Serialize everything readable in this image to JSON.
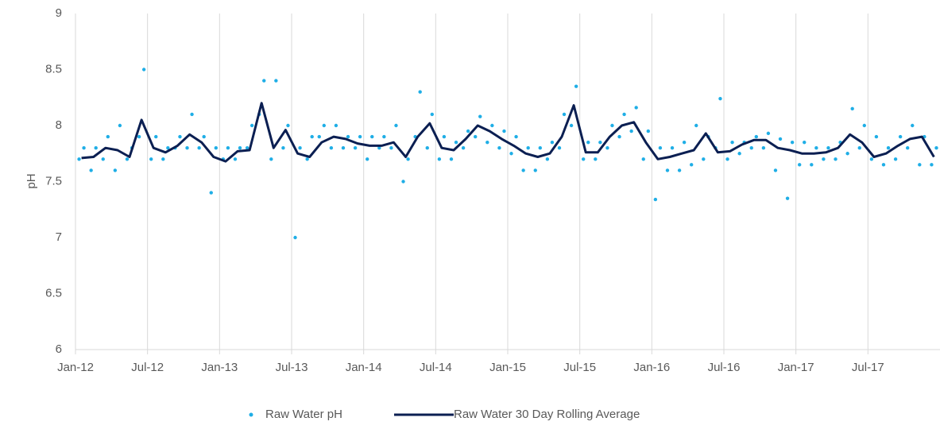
{
  "chart_data": {
    "type": "scatter_line",
    "y_label": "pH",
    "xlim": [
      "2012-01",
      "2018-01"
    ],
    "xticks": [
      {
        "value": "2012-01",
        "label": "Jan-12"
      },
      {
        "value": "2012-07",
        "label": "Jul-12"
      },
      {
        "value": "2013-01",
        "label": "Jan-13"
      },
      {
        "value": "2013-07",
        "label": "Jul-13"
      },
      {
        "value": "2014-01",
        "label": "Jan-14"
      },
      {
        "value": "2014-07",
        "label": "Jul-14"
      },
      {
        "value": "2015-01",
        "label": "Jan-15"
      },
      {
        "value": "2015-07",
        "label": "Jul-15"
      },
      {
        "value": "2016-01",
        "label": "Jan-16"
      },
      {
        "value": "2016-07",
        "label": "Jul-16"
      },
      {
        "value": "2017-01",
        "label": "Jan-17"
      },
      {
        "value": "2017-07",
        "label": "Jul-17"
      }
    ],
    "ylim": [
      6,
      9
    ],
    "yticks": [
      6,
      6.5,
      7,
      7.5,
      8,
      8.5,
      9
    ],
    "grid": "x",
    "legend": "bottom",
    "series": [
      {
        "name": "Raw Water pH",
        "kind": "scatter",
        "color": "#1faee6",
        "x": [
          "2012-01",
          "2012-01",
          "2012-02",
          "2012-02",
          "2012-03",
          "2012-03",
          "2012-04",
          "2012-04",
          "2012-05",
          "2012-05",
          "2012-06",
          "2012-06",
          "2012-07",
          "2012-07",
          "2012-08",
          "2012-08",
          "2012-09",
          "2012-09",
          "2012-10",
          "2012-10",
          "2012-11",
          "2012-11",
          "2012-12",
          "2012-12",
          "2013-01",
          "2013-01",
          "2013-02",
          "2013-02",
          "2013-03",
          "2013-03",
          "2013-04",
          "2013-04",
          "2013-05",
          "2013-05",
          "2013-06",
          "2013-06",
          "2013-07",
          "2013-07",
          "2013-08",
          "2013-08",
          "2013-09",
          "2013-09",
          "2013-10",
          "2013-10",
          "2013-11",
          "2013-11",
          "2013-12",
          "2013-12",
          "2014-01",
          "2014-01",
          "2014-02",
          "2014-02",
          "2014-03",
          "2014-03",
          "2014-04",
          "2014-04",
          "2014-05",
          "2014-05",
          "2014-06",
          "2014-06",
          "2014-07",
          "2014-07",
          "2014-08",
          "2014-08",
          "2014-09",
          "2014-09",
          "2014-10",
          "2014-10",
          "2014-11",
          "2014-11",
          "2014-12",
          "2014-12",
          "2015-01",
          "2015-01",
          "2015-02",
          "2015-02",
          "2015-03",
          "2015-03",
          "2015-04",
          "2015-04",
          "2015-05",
          "2015-05",
          "2015-06",
          "2015-06",
          "2015-07",
          "2015-07",
          "2015-08",
          "2015-08",
          "2015-09",
          "2015-09",
          "2015-10",
          "2015-10",
          "2015-11",
          "2015-11",
          "2015-12",
          "2015-12",
          "2016-01",
          "2016-01",
          "2016-02",
          "2016-02",
          "2016-03",
          "2016-03",
          "2016-04",
          "2016-04",
          "2016-05",
          "2016-05",
          "2016-06",
          "2016-06",
          "2016-07",
          "2016-07",
          "2016-08",
          "2016-08",
          "2016-09",
          "2016-09",
          "2016-10",
          "2016-10",
          "2016-11",
          "2016-11",
          "2016-12",
          "2016-12",
          "2017-01",
          "2017-01",
          "2017-02",
          "2017-02",
          "2017-03",
          "2017-03",
          "2017-04",
          "2017-04",
          "2017-05",
          "2017-05",
          "2017-06",
          "2017-06",
          "2017-07",
          "2017-07",
          "2017-08",
          "2017-08",
          "2017-09",
          "2017-09",
          "2017-10",
          "2017-10",
          "2017-11",
          "2017-11",
          "2017-12",
          "2017-12"
        ],
        "values": [
          7.7,
          7.8,
          7.6,
          7.8,
          7.7,
          7.9,
          7.6,
          8.0,
          7.7,
          7.8,
          7.9,
          8.5,
          7.7,
          7.9,
          7.7,
          7.8,
          7.8,
          7.9,
          7.8,
          8.1,
          7.8,
          7.9,
          7.4,
          7.8,
          7.7,
          7.8,
          7.7,
          7.8,
          7.8,
          8.0,
          8.1,
          8.4,
          7.7,
          8.4,
          7.8,
          8.0,
          7.0,
          7.8,
          7.7,
          7.9,
          7.9,
          8.0,
          7.8,
          8.0,
          7.8,
          7.9,
          7.8,
          7.9,
          7.7,
          7.9,
          7.8,
          7.9,
          7.8,
          8.0,
          7.5,
          7.7,
          7.9,
          8.3,
          7.8,
          8.1,
          7.7,
          7.9,
          7.7,
          7.85,
          7.8,
          7.95,
          7.9,
          8.08,
          7.85,
          8.0,
          7.8,
          7.95,
          7.75,
          7.9,
          7.6,
          7.8,
          7.6,
          7.8,
          7.7,
          7.85,
          7.8,
          8.1,
          8.0,
          8.35,
          7.7,
          7.85,
          7.7,
          7.85,
          7.8,
          8.0,
          7.9,
          8.1,
          7.95,
          8.16,
          7.7,
          7.95,
          7.34,
          7.8,
          7.6,
          7.8,
          7.6,
          7.85,
          7.65,
          8.0,
          7.7,
          7.9,
          7.8,
          8.24,
          7.7,
          7.85,
          7.75,
          7.85,
          7.8,
          7.9,
          7.8,
          7.93,
          7.6,
          7.88,
          7.35,
          7.85,
          7.65,
          7.85,
          7.65,
          7.8,
          7.7,
          7.8,
          7.7,
          7.85,
          7.75,
          8.15,
          7.8,
          8.0,
          7.7,
          7.9,
          7.65,
          7.8,
          7.7,
          7.9,
          7.8,
          8.0,
          7.65,
          7.9,
          7.65,
          7.8
        ]
      },
      {
        "name": "Raw Water 30 Day Rolling Average",
        "kind": "line",
        "color": "#0b1f52",
        "x": [
          "2012-01",
          "2012-02",
          "2012-03",
          "2012-04",
          "2012-05",
          "2012-06",
          "2012-07",
          "2012-08",
          "2012-09",
          "2012-10",
          "2012-11",
          "2012-12",
          "2013-01",
          "2013-02",
          "2013-03",
          "2013-04",
          "2013-05",
          "2013-06",
          "2013-07",
          "2013-08",
          "2013-09",
          "2013-10",
          "2013-11",
          "2013-12",
          "2014-01",
          "2014-02",
          "2014-03",
          "2014-04",
          "2014-05",
          "2014-06",
          "2014-07",
          "2014-08",
          "2014-09",
          "2014-10",
          "2014-11",
          "2014-12",
          "2015-01",
          "2015-02",
          "2015-03",
          "2015-04",
          "2015-05",
          "2015-06",
          "2015-07",
          "2015-08",
          "2015-09",
          "2015-10",
          "2015-11",
          "2015-12",
          "2016-01",
          "2016-02",
          "2016-03",
          "2016-04",
          "2016-05",
          "2016-06",
          "2016-07",
          "2016-08",
          "2016-09",
          "2016-10",
          "2016-11",
          "2016-12",
          "2017-01",
          "2017-02",
          "2017-03",
          "2017-04",
          "2017-05",
          "2017-06",
          "2017-07",
          "2017-08",
          "2017-09",
          "2017-10",
          "2017-11",
          "2017-12"
        ],
        "values": [
          7.71,
          7.72,
          7.8,
          7.78,
          7.72,
          8.05,
          7.8,
          7.76,
          7.82,
          7.92,
          7.85,
          7.72,
          7.68,
          7.77,
          7.78,
          8.2,
          7.8,
          7.96,
          7.75,
          7.72,
          7.85,
          7.9,
          7.88,
          7.84,
          7.82,
          7.82,
          7.85,
          7.72,
          7.9,
          8.02,
          7.8,
          7.78,
          7.88,
          8.0,
          7.95,
          7.88,
          7.82,
          7.75,
          7.72,
          7.75,
          7.9,
          8.18,
          7.76,
          7.76,
          7.9,
          8.0,
          8.03,
          7.85,
          7.7,
          7.72,
          7.75,
          7.78,
          7.93,
          7.76,
          7.77,
          7.83,
          7.87,
          7.87,
          7.8,
          7.78,
          7.75,
          7.75,
          7.76,
          7.8,
          7.92,
          7.85,
          7.72,
          7.75,
          7.82,
          7.88,
          7.9,
          7.72
        ]
      }
    ]
  }
}
